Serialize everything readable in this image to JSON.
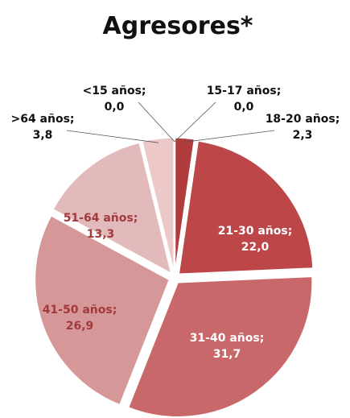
{
  "chart_data": {
    "type": "pie",
    "title": "Agresores*",
    "slices": [
      {
        "label": "<15 años;",
        "value_text": "0,0",
        "value": 0.0,
        "color": "#b9484a"
      },
      {
        "label": "15-17 años;",
        "value_text": "0,0",
        "value": 0.0,
        "color": "#b9484a"
      },
      {
        "label": "18-20 años;",
        "value_text": "2,3",
        "value": 2.3,
        "color": "#b13c3e"
      },
      {
        "label": "21-30 años;",
        "value_text": "22,0",
        "value": 22.0,
        "color": "#bd4648"
      },
      {
        "label": "31-40 años;",
        "value_text": "31,7",
        "value": 31.7,
        "color": "#c8686a"
      },
      {
        "label": "41-50 años;",
        "value_text": "26,9",
        "value": 26.9,
        "color": "#d69798"
      },
      {
        "label": "51-64 años;",
        "value_text": "13,3",
        "value": 13.3,
        "color": "#e3babb"
      },
      {
        "label": ">64 años;",
        "value_text": "3,8",
        "value": 3.8,
        "color": "#ecc8c9"
      }
    ]
  }
}
